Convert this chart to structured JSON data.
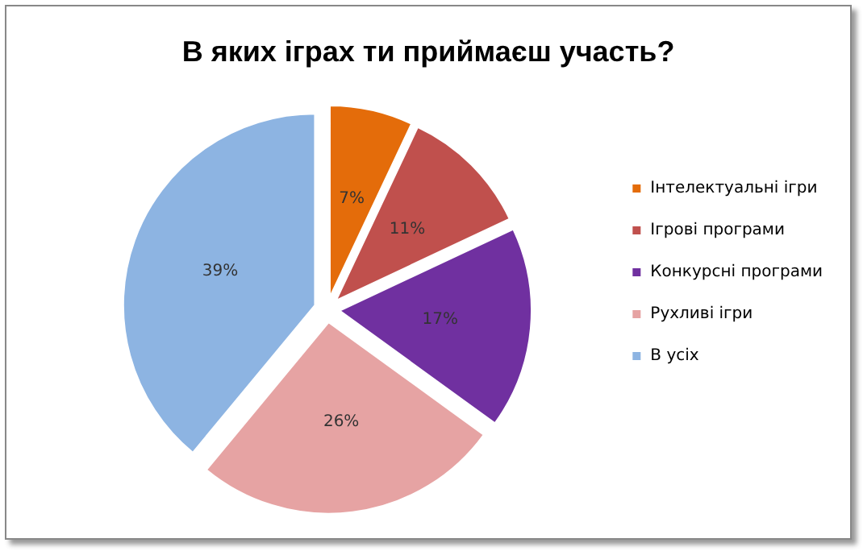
{
  "chart_data": {
    "type": "pie",
    "title": "В яких іграх ти приймаєш участь?",
    "categories": [
      "Інтелектуальні ігри",
      "Ігрові програми",
      "Конкурсні програми",
      "Рухливі ігри",
      "В усіх"
    ],
    "values": [
      7,
      11,
      17,
      26,
      39
    ],
    "value_labels": [
      "7%",
      "11%",
      "17%",
      "26%",
      "39%"
    ],
    "colors": [
      "#e46c0a",
      "#c0504d",
      "#7030a0",
      "#e6a3a3",
      "#8db4e2"
    ],
    "legend": "right"
  }
}
